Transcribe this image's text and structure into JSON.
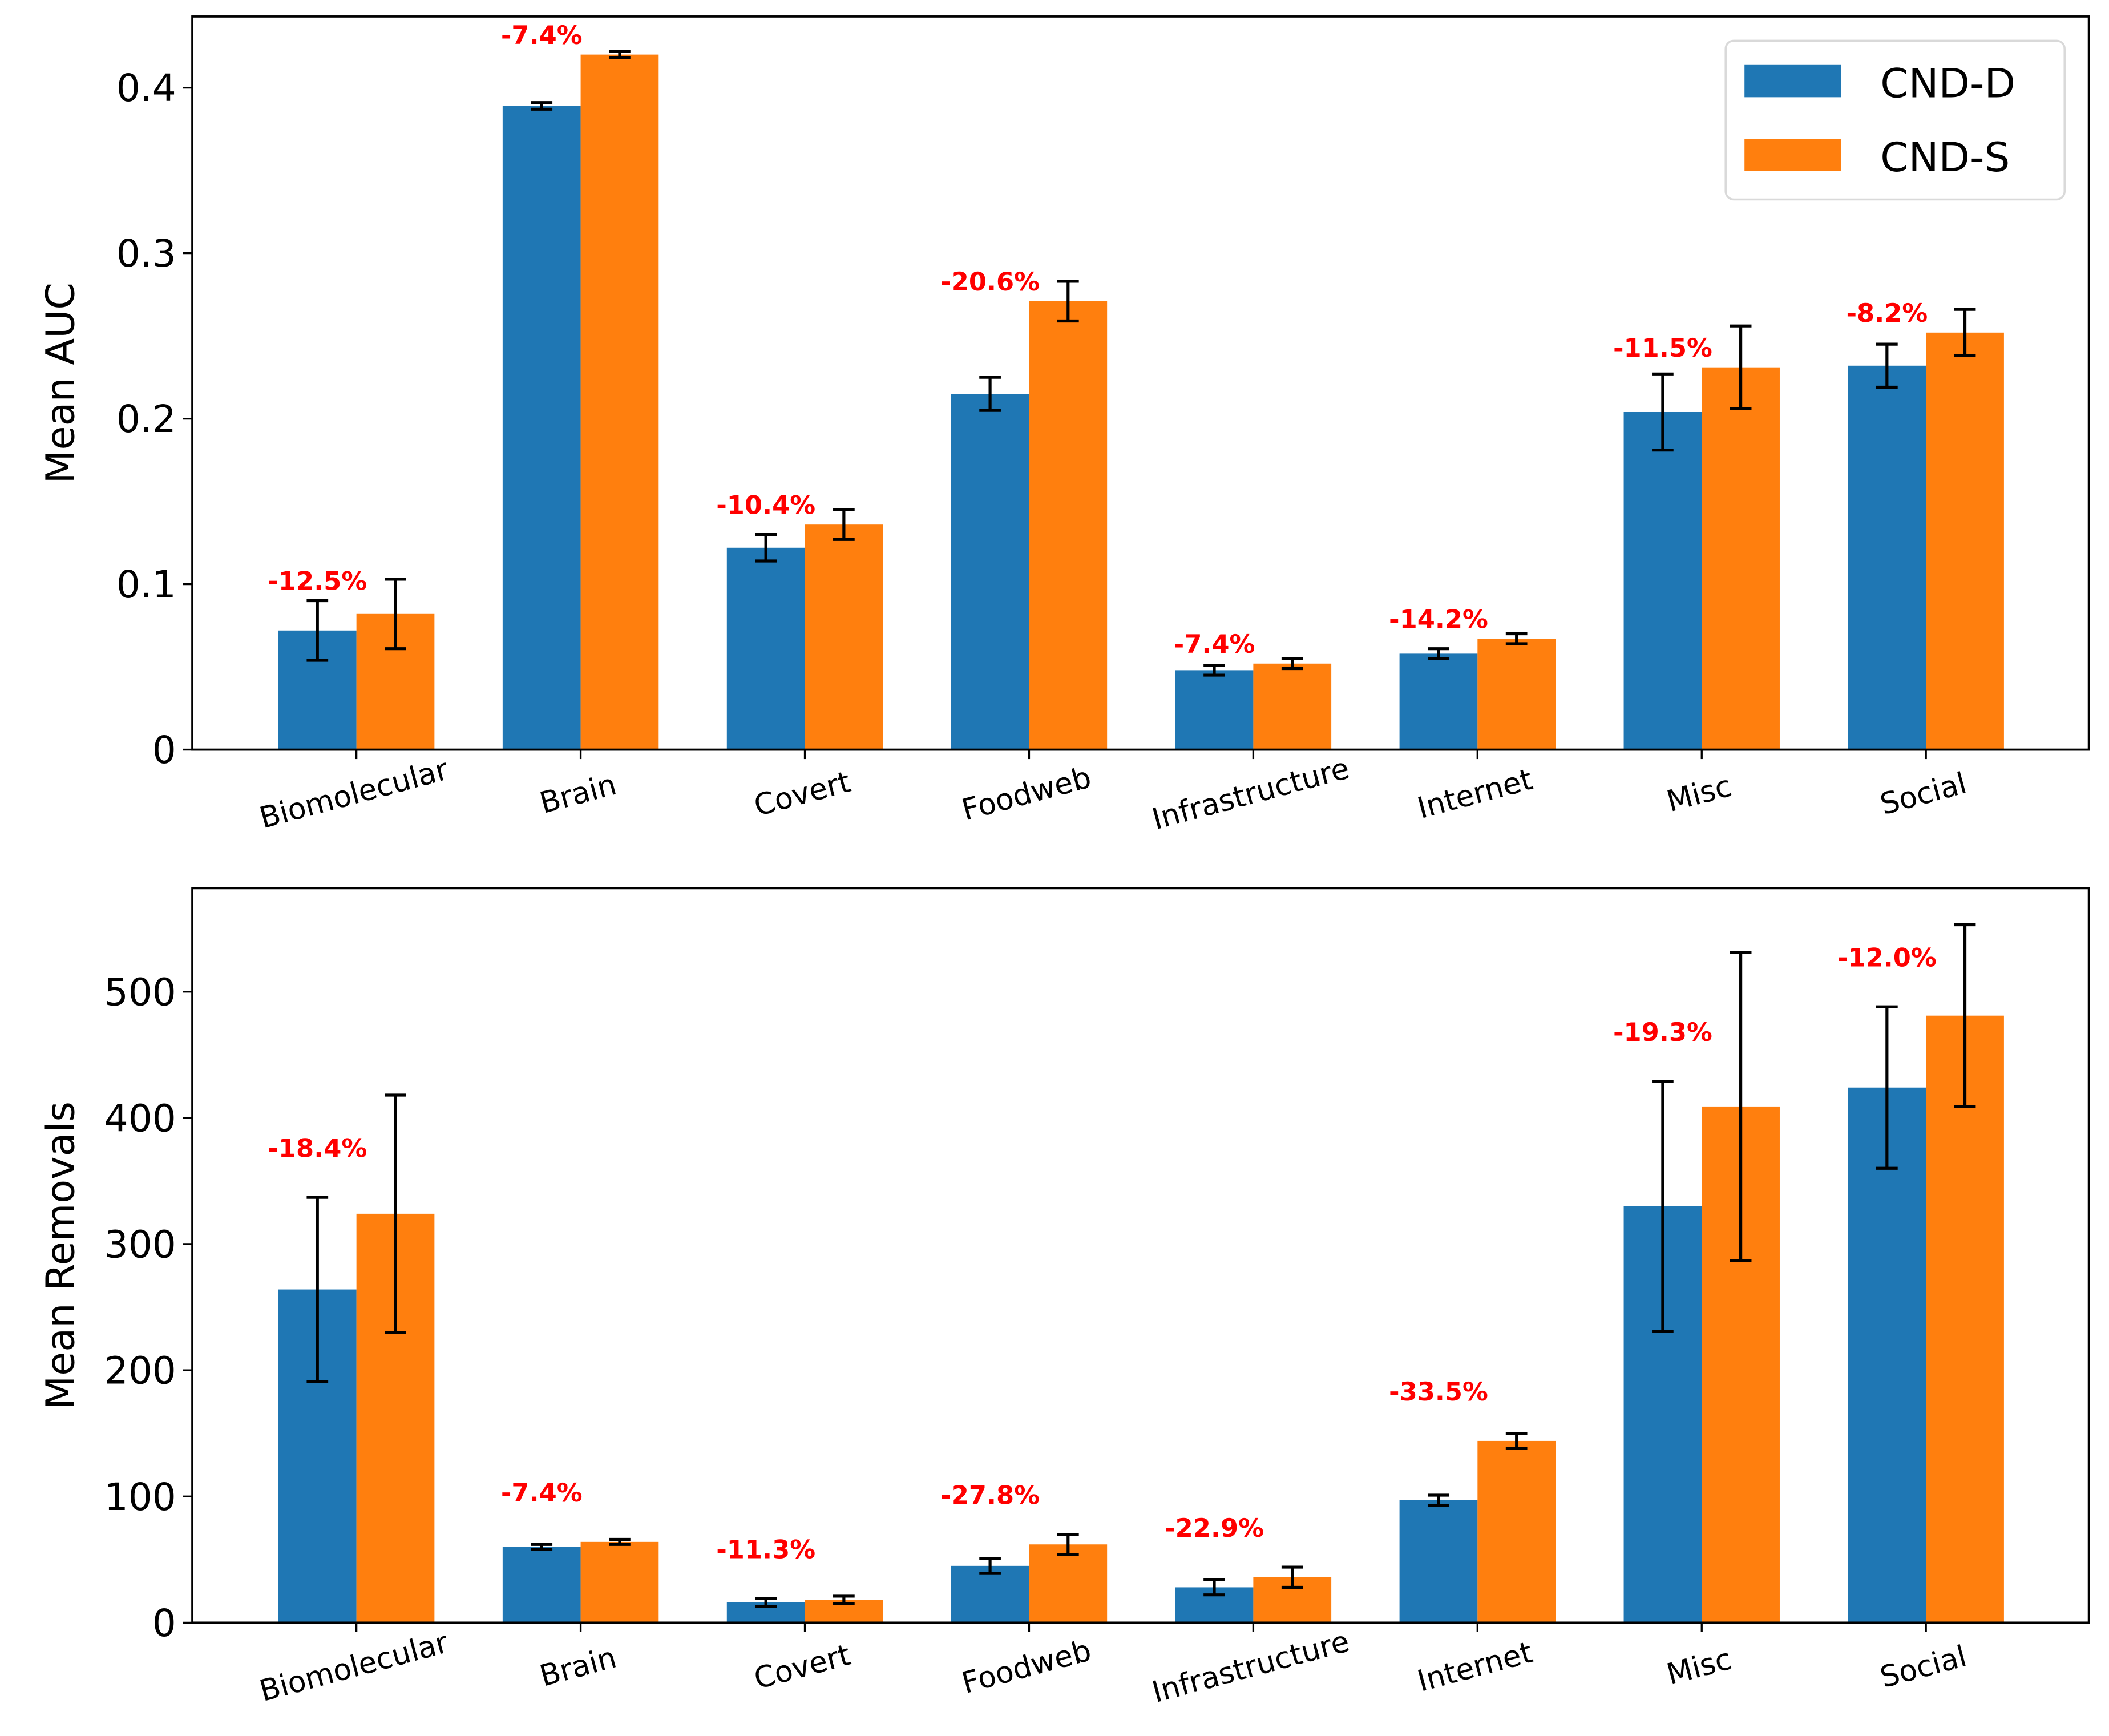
{
  "chart_data": [
    {
      "type": "bar",
      "ylabel": "Mean AUC",
      "xlabel": "",
      "ylim": [
        0,
        0.443
      ],
      "yticks": [
        "0",
        "0.1",
        "0.2",
        "0.3",
        "0.4"
      ],
      "ytick_values": [
        0,
        0.1,
        0.2,
        0.3,
        0.4
      ],
      "categories": [
        "Biomolecular",
        "Brain",
        "Covert",
        "Foodweb",
        "Infrastructure",
        "Internet",
        "Misc",
        "Social"
      ],
      "series": [
        {
          "name": "CND-D",
          "color": "#1f77b4",
          "values": [
            0.072,
            0.389,
            0.122,
            0.215,
            0.048,
            0.058,
            0.204,
            0.232
          ],
          "errors": [
            0.018,
            0.002,
            0.008,
            0.01,
            0.003,
            0.003,
            0.023,
            0.013
          ]
        },
        {
          "name": "CND-S",
          "color": "#ff7f0e",
          "values": [
            0.082,
            0.42,
            0.136,
            0.271,
            0.052,
            0.067,
            0.231,
            0.252
          ],
          "errors": [
            0.021,
            0.002,
            0.009,
            0.012,
            0.003,
            0.003,
            0.025,
            0.014
          ]
        }
      ],
      "annotations": [
        "-12.5%",
        "-7.4%",
        "-10.4%",
        "-20.6%",
        "-7.4%",
        "-14.2%",
        "-11.5%",
        "-8.2%"
      ],
      "annotation_color": "#ff0000",
      "legend": {
        "placement": "top-right",
        "entries": [
          "CND-D",
          "CND-S"
        ]
      },
      "grid": false
    },
    {
      "type": "bar",
      "ylabel": "Mean Removals",
      "xlabel": "",
      "ylim": [
        0,
        582
      ],
      "yticks": [
        "0",
        "100",
        "200",
        "300",
        "400",
        "500"
      ],
      "ytick_values": [
        0,
        100,
        200,
        300,
        400,
        500
      ],
      "categories": [
        "Biomolecular",
        "Brain",
        "Covert",
        "Foodweb",
        "Infrastructure",
        "Internet",
        "Misc",
        "Social"
      ],
      "series": [
        {
          "name": "CND-D",
          "color": "#1f77b4",
          "values": [
            264,
            60,
            16,
            45,
            28,
            97,
            330,
            424
          ],
          "errors": [
            73,
            2,
            3,
            6,
            6,
            4,
            99,
            64
          ]
        },
        {
          "name": "CND-S",
          "color": "#ff7f0e",
          "values": [
            324,
            64,
            18,
            62,
            36,
            144,
            409,
            481
          ],
          "errors": [
            94,
            2,
            3,
            8,
            8,
            6,
            122,
            72
          ]
        }
      ],
      "annotations": [
        "-18.4%",
        "-7.4%",
        "-11.3%",
        "-27.8%",
        "-22.9%",
        "-33.5%",
        "-19.3%",
        "-12.0%"
      ],
      "annotation_color": "#ff0000",
      "grid": false
    }
  ]
}
